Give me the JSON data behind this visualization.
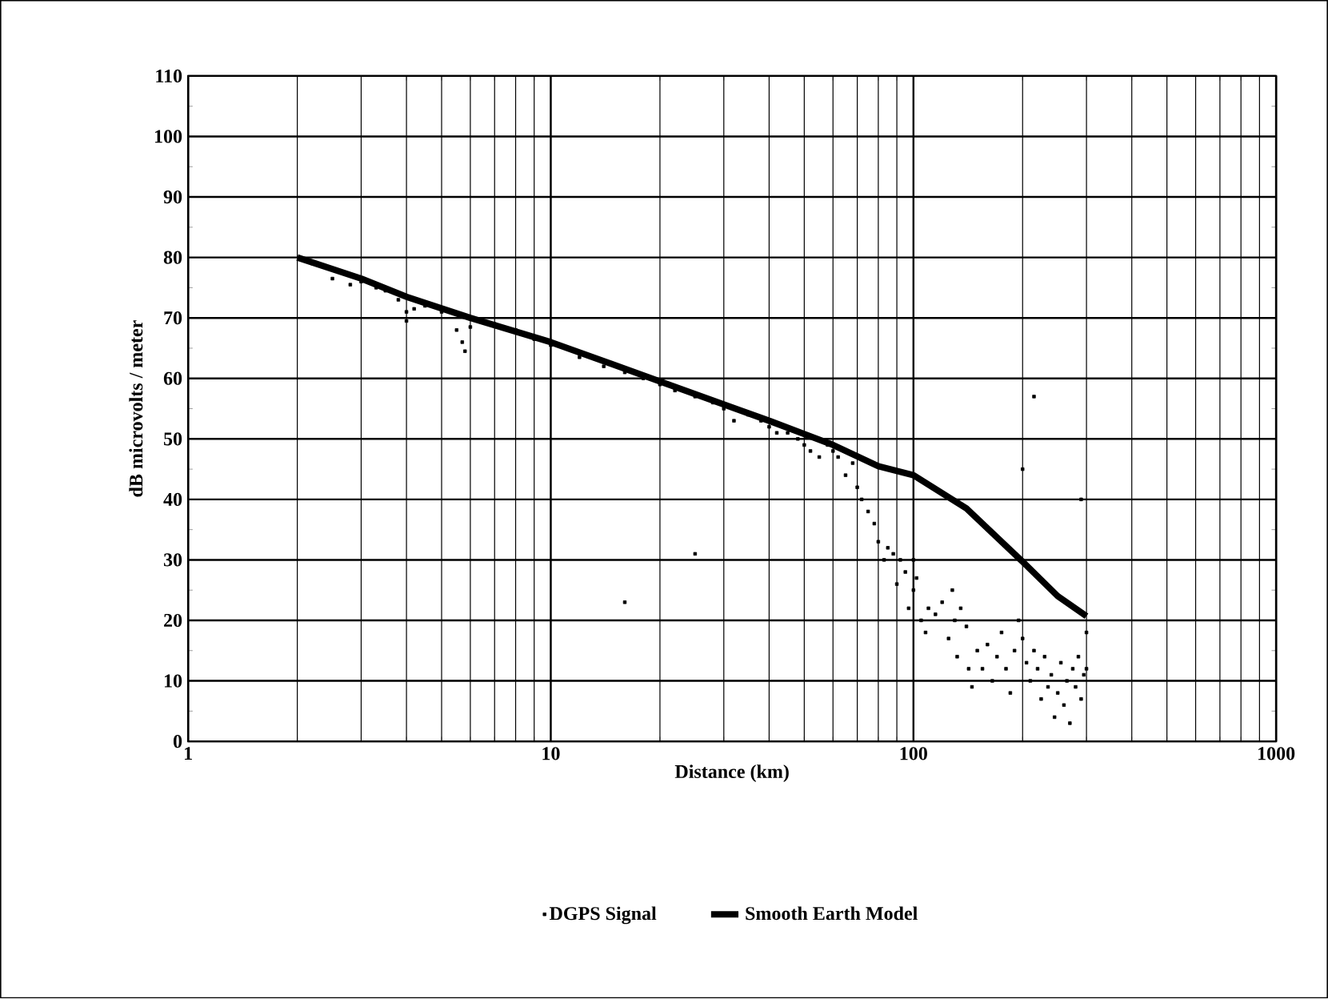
{
  "chart_data": {
    "type": "scatter",
    "xlabel": "Distance (km)",
    "ylabel": "dB microvolts / meter",
    "log": "x",
    "xlim": [
      1,
      1000
    ],
    "xticks": [
      1,
      10,
      100,
      1000
    ],
    "ylim": [
      0,
      110
    ],
    "yticks": [
      0,
      10,
      20,
      30,
      40,
      50,
      60,
      70,
      80,
      90,
      100,
      110
    ],
    "grid": true,
    "legend": "bottom",
    "series": [
      {
        "name": "DGPS Signal",
        "marker": "square",
        "color": "#000000",
        "x": [
          2.2,
          2.5,
          2.8,
          3,
          3.3,
          3.5,
          3.8,
          4,
          4,
          4.2,
          4.5,
          5,
          5.5,
          5.7,
          5.8,
          6,
          7,
          8,
          9,
          10,
          12,
          14,
          16,
          16,
          18,
          20,
          22,
          25,
          25,
          28,
          30,
          32,
          35,
          38,
          40,
          42,
          45,
          48,
          50,
          52,
          55,
          58,
          60,
          62,
          65,
          68,
          70,
          72,
          75,
          78,
          80,
          83,
          85,
          88,
          90,
          92,
          95,
          97,
          100,
          100,
          102,
          105,
          108,
          110,
          115,
          120,
          125,
          128,
          130,
          132,
          135,
          140,
          142,
          145,
          150,
          155,
          160,
          165,
          170,
          175,
          180,
          185,
          190,
          195,
          200,
          200,
          205,
          210,
          215,
          215,
          220,
          225,
          230,
          235,
          240,
          245,
          250,
          255,
          260,
          265,
          270,
          275,
          280,
          285,
          290,
          290,
          295,
          300,
          300
        ],
        "values": [
          79,
          76.5,
          75.5,
          76,
          75,
          74.5,
          73,
          71,
          69.5,
          71.5,
          72,
          71,
          68,
          66,
          64.5,
          68.5,
          69,
          68,
          66.5,
          65.5,
          63.5,
          62,
          61,
          23,
          60,
          59,
          58,
          57,
          31,
          56,
          55,
          53,
          54,
          53,
          52,
          51,
          51,
          50,
          49,
          48,
          47,
          49,
          48,
          47,
          44,
          46,
          42,
          40,
          38,
          36,
          33,
          30,
          32,
          31,
          26,
          30,
          28,
          22,
          30,
          25,
          27,
          20,
          18,
          22,
          21,
          23,
          17,
          25,
          20,
          14,
          22,
          19,
          12,
          9,
          15,
          12,
          16,
          10,
          14,
          18,
          12,
          8,
          15,
          20,
          17,
          45,
          13,
          10,
          57,
          15,
          12,
          7,
          14,
          9,
          11,
          4,
          8,
          13,
          6,
          10,
          3,
          12,
          9,
          14,
          7,
          40,
          11,
          12,
          18
        ]
      },
      {
        "name": "Smooth Earth Model",
        "type": "line",
        "marker": "none",
        "color": "#000000",
        "x": [
          2,
          3,
          4,
          6,
          10,
          20,
          40,
          60,
          80,
          100,
          140,
          200,
          250,
          300
        ],
        "values": [
          80,
          76.5,
          73.5,
          70,
          66,
          59.5,
          53,
          49,
          45.5,
          44,
          38.5,
          29.7,
          24,
          20.7
        ]
      }
    ]
  }
}
